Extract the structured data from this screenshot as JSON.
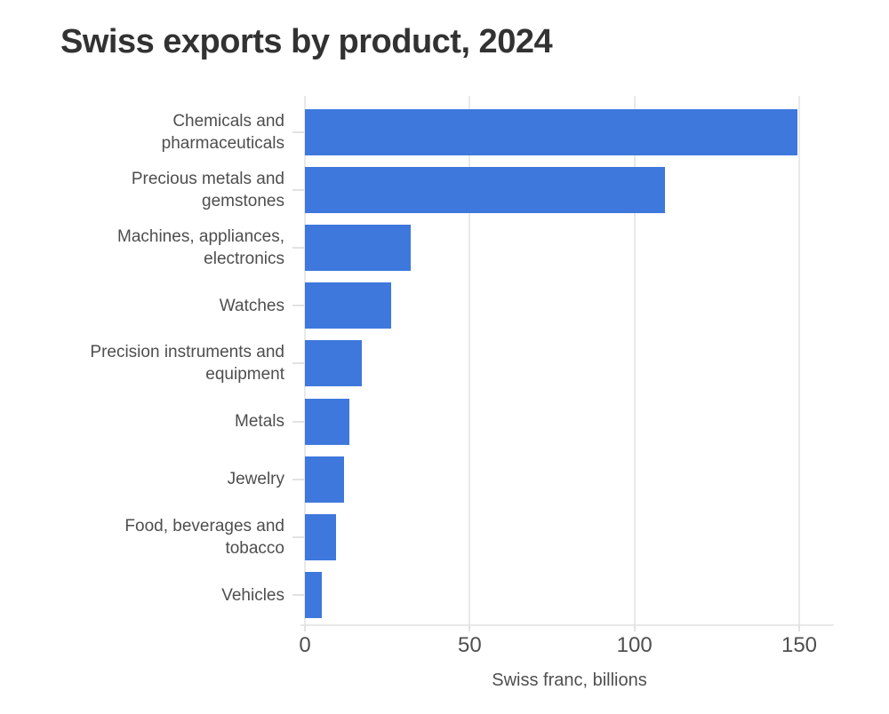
{
  "header": {
    "title": "Swiss exports by product, 2024"
  },
  "chart_data": {
    "type": "bar",
    "orientation": "horizontal",
    "title": "Swiss exports by product, 2024",
    "categories": [
      "Chemicals and\npharmaceuticals",
      "Precious metals and\ngemstones",
      "Machines, appliances,\nelectronics",
      "Watches",
      "Precision instruments and\nequipment",
      "Metals",
      "Jewelry",
      "Food, beverages and\ntobacco",
      "Vehicles"
    ],
    "values": [
      149.4,
      109.2,
      32.2,
      26.1,
      17.4,
      13.4,
      12.0,
      9.5,
      5.2
    ],
    "xlabel": "Swiss franc, billions",
    "xticks": [
      0,
      50,
      100,
      150
    ],
    "xlim": [
      0,
      160.5
    ],
    "grid": true,
    "legend": false,
    "colors": {
      "bar": "#3e78dd",
      "gridline": "#e9e9e9",
      "axis_line": "#e8e8e8",
      "tick_mark": "#e2e2e2",
      "category_label": "#4e4e4e",
      "tick_label": "#4f4f4f",
      "title": "#323232"
    }
  }
}
